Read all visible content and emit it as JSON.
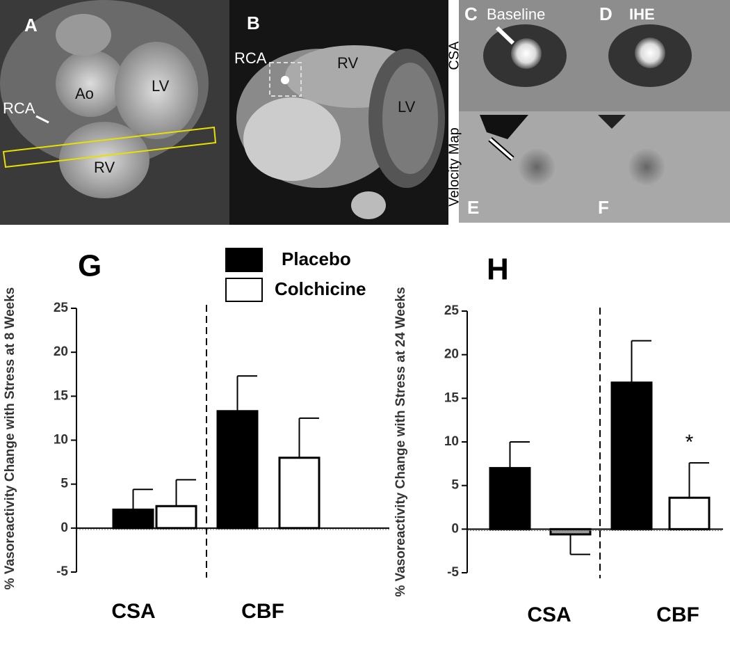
{
  "images": {
    "A": {
      "letter": "A",
      "labels": [
        "RCA",
        "Ao",
        "LV",
        "RV"
      ]
    },
    "B": {
      "letter": "B",
      "labels": [
        "RCA",
        "RV",
        "LV"
      ]
    },
    "C": {
      "letter": "C",
      "label": "Baseline"
    },
    "D": {
      "letter": "D",
      "label": "IHE"
    },
    "E": {
      "letter": "E"
    },
    "F": {
      "letter": "F"
    },
    "row_labels": [
      "CSA",
      "Velocity Map"
    ]
  },
  "chart_data": [
    {
      "type": "bar",
      "title": "G",
      "ylabel": "% Vasoreactivity Change with Stress at 8 Weeks",
      "categories": [
        "CSA",
        "CBF"
      ],
      "series": [
        {
          "name": "Placebo",
          "color": "#000000",
          "values": [
            2.1,
            13.3
          ],
          "errors": [
            2.3,
            4.0
          ]
        },
        {
          "name": "Colchicine",
          "color": "#ffffff",
          "values": [
            2.5,
            8.0
          ],
          "errors": [
            3.0,
            4.5
          ]
        }
      ],
      "ylim": [
        -5,
        25
      ],
      "yticks": [
        -5,
        0,
        5,
        10,
        15,
        20,
        25
      ],
      "legend": true
    },
    {
      "type": "bar",
      "title": "H",
      "ylabel": "% Vasoreactivity Change with Stress at 24 Weeks",
      "categories": [
        "CSA",
        "CBF"
      ],
      "series": [
        {
          "name": "Placebo",
          "color": "#000000",
          "values": [
            7.0,
            16.8
          ],
          "errors": [
            3.0,
            4.8
          ]
        },
        {
          "name": "Colchicine",
          "color": "#ffffff",
          "colors": [
            "#999999",
            "#ffffff"
          ],
          "values": [
            -0.6,
            3.6
          ],
          "errors": [
            2.3,
            4.0
          ]
        }
      ],
      "ylim": [
        -5,
        25
      ],
      "yticks": [
        -5,
        0,
        5,
        10,
        15,
        20,
        25
      ],
      "legend": false,
      "annotations": [
        {
          "text": "*",
          "series": 1,
          "category": 1
        }
      ]
    }
  ]
}
